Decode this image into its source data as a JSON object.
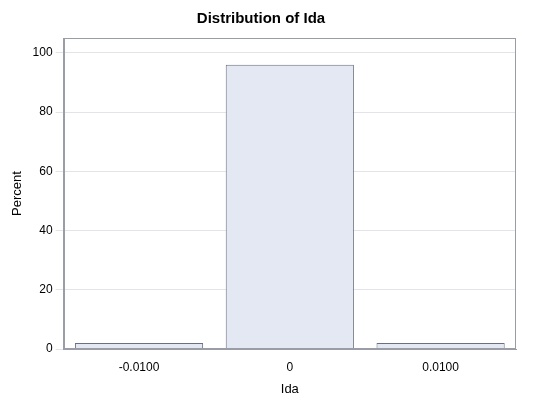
{
  "chart_data": {
    "type": "bar",
    "title": "Distribution of Ida",
    "x_label": "Ida",
    "y_label": "Percent",
    "categories": [
      "-0.0100",
      "0",
      "0.0100"
    ],
    "values": [
      2,
      96,
      2
    ],
    "color": "#e3e8f3",
    "ylim": [
      0,
      105
    ],
    "yticks": [
      0,
      20,
      40,
      60,
      80,
      100
    ],
    "grid": true
  }
}
